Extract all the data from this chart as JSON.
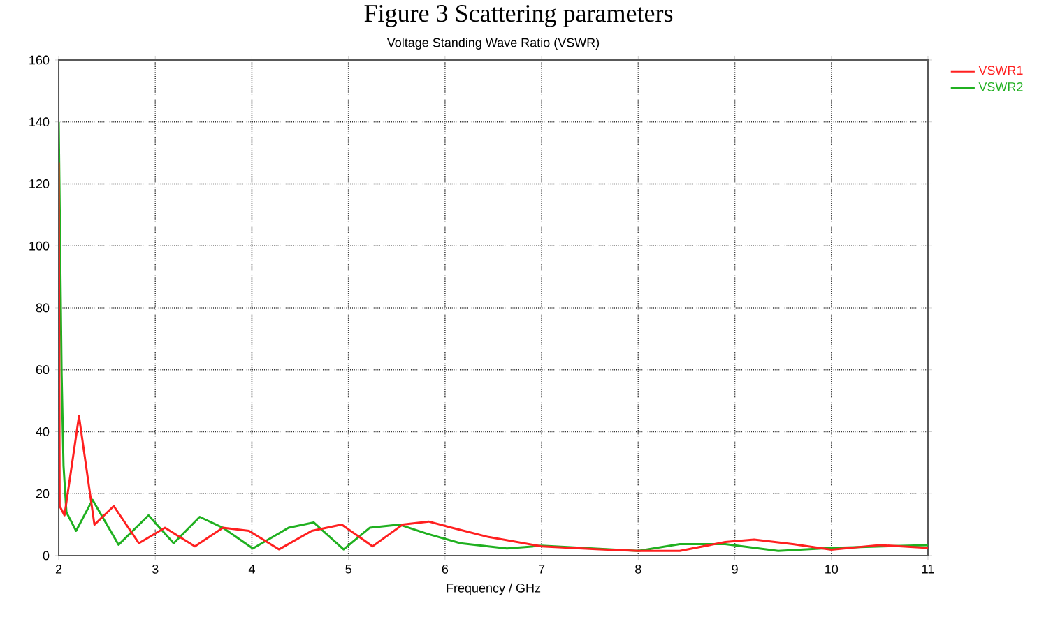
{
  "chart_data": {
    "type": "line",
    "title": "Voltage Standing Wave Ratio (VSWR)",
    "xlabel": "Frequency / GHz",
    "annotations": [
      "Figure 3 Scattering parameters"
    ],
    "xlim": [
      2,
      11
    ],
    "xticks": [
      2,
      3,
      4,
      5,
      6,
      7,
      8,
      9,
      10,
      11
    ],
    "ylim": [
      0,
      160
    ],
    "yticks": [
      0,
      20,
      40,
      60,
      80,
      100,
      120,
      140,
      160
    ],
    "grid": true,
    "legend": "top right",
    "marker": "none",
    "line_style": "solid",
    "series": [
      {
        "name": "VSWR1",
        "color": "#ff2020",
        "x": [
          2,
          2.01,
          2.06,
          2.21,
          2.37,
          2.57,
          2.83,
          3.1,
          3.41,
          3.7,
          3.97,
          4.28,
          4.62,
          4.93,
          5.25,
          5.56,
          5.83,
          6.07,
          6.45,
          7,
          7.6,
          8,
          8.43,
          8.9,
          9.2,
          9.6,
          10,
          10.5,
          11
        ],
        "values": [
          127,
          16,
          13,
          45,
          10,
          16,
          4,
          9,
          3,
          9,
          8,
          2,
          8,
          10,
          3,
          10,
          11,
          9,
          6,
          3,
          2,
          1.5,
          1.5,
          4.4,
          5.2,
          3.7,
          1.9,
          3.4,
          2.5
        ]
      },
      {
        "name": "VSWR2",
        "color": "#20b020",
        "x": [
          2,
          2.03,
          2.05,
          2.08,
          2.18,
          2.35,
          2.62,
          2.93,
          3.19,
          3.46,
          3.7,
          4.01,
          4.38,
          4.64,
          4.95,
          5.22,
          5.53,
          5.82,
          6.16,
          6.64,
          7,
          7.6,
          8,
          8.43,
          8.9,
          9.45,
          10,
          11
        ],
        "values": [
          140,
          59,
          29,
          14,
          8,
          18,
          3.5,
          13,
          4,
          12.5,
          9,
          2.3,
          9,
          10.7,
          2,
          9,
          10,
          7,
          4,
          2.3,
          3.2,
          2.2,
          1.5,
          3.7,
          3.7,
          1.5,
          2.5,
          3.4
        ]
      }
    ]
  }
}
